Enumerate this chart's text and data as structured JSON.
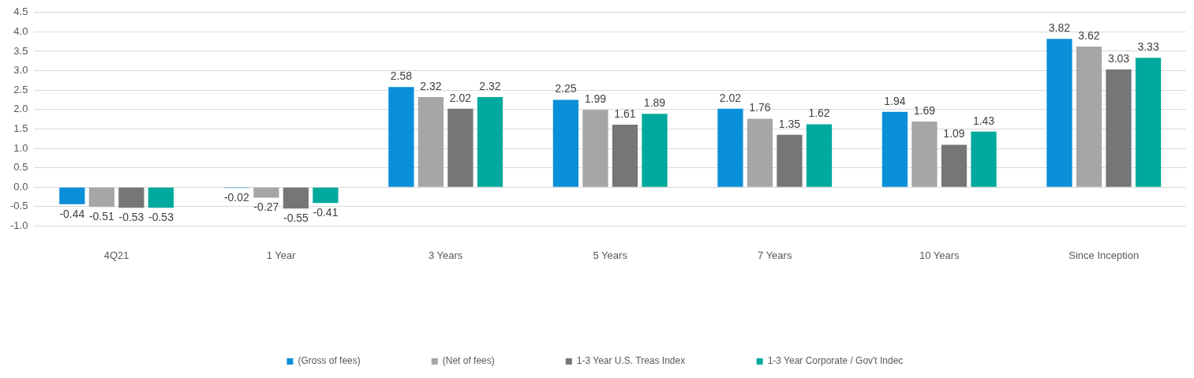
{
  "chart_data": {
    "type": "bar",
    "categories": [
      "4Q21",
      "1 Year",
      "3 Years",
      "5 Years",
      "7 Years",
      "10 Years",
      "Since Inception"
    ],
    "series": [
      {
        "name": "(Gross of fees)",
        "color": "#0a8fd9",
        "values": [
          -0.44,
          -0.02,
          2.58,
          2.25,
          2.02,
          1.94,
          3.82
        ]
      },
      {
        "name": "(Net of fees)",
        "color": "#a6a6a6",
        "values": [
          -0.51,
          -0.27,
          2.32,
          1.99,
          1.76,
          1.69,
          3.62
        ]
      },
      {
        "name": "1-3 Year U.S. Treas Index",
        "color": "#747678",
        "values": [
          -0.53,
          -0.55,
          2.02,
          1.61,
          1.35,
          1.09,
          3.03
        ]
      },
      {
        "name": "1-3 Year Corporate / Gov't Indec",
        "color": "#00a99d",
        "values": [
          -0.53,
          -0.41,
          2.32,
          1.89,
          1.62,
          1.43,
          3.33
        ]
      }
    ],
    "ylim": [
      -1,
      4.5
    ],
    "yticks": [
      {
        "value": -1,
        "label": "-1.0"
      },
      -0.5,
      {
        "value": 0,
        "label": "0.0"
      },
      0.5,
      {
        "value": 1,
        "label": "1.0"
      },
      1.5,
      {
        "value": 2,
        "label": "2.0"
      },
      2.5,
      {
        "value": 3,
        "label": "3.0"
      },
      3.5,
      {
        "value": 4,
        "label": "4.0"
      },
      4.5
    ],
    "grid": "y",
    "legend": "bottom",
    "data_labels": true
  }
}
